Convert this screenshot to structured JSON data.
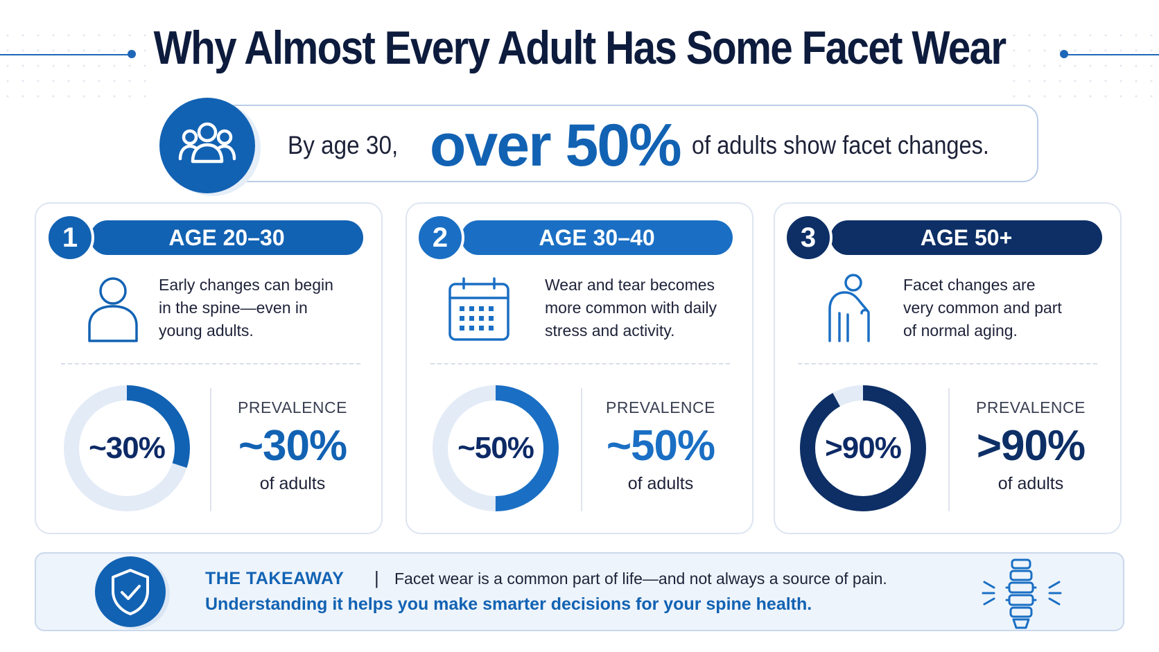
{
  "header": {
    "title": "Why Almost Every Adult Has Some Facet Wear"
  },
  "banner": {
    "icon": "group-people-icon",
    "prefix": "By age 30,",
    "highlight": "over 50%",
    "suffix": "of adults show facet changes."
  },
  "cards": [
    {
      "number": "1",
      "age_label": "AGE 20–30",
      "icon": "person-icon",
      "description": [
        "Early changes can begin",
        "in the spine—even in",
        "young adults."
      ],
      "ring_label": "~30%",
      "prevalence_caption": "PREVALENCE",
      "prevalence_value": "~30%",
      "prevalence_unit": "of adults",
      "fraction": 0.3,
      "accent": "#1262b3"
    },
    {
      "number": "2",
      "age_label": "AGE 30–40",
      "icon": "calendar-icon",
      "description": [
        "Wear and tear becomes",
        "more common with daily",
        "stress and activity."
      ],
      "ring_label": "~50%",
      "prevalence_caption": "PREVALENCE",
      "prevalence_value": "~50%",
      "prevalence_unit": "of adults",
      "fraction": 0.5,
      "accent": "#1a6fc4"
    },
    {
      "number": "3",
      "age_label": "AGE 50+",
      "icon": "elderly-person-cane-icon",
      "description": [
        "Facet changes are",
        "very common and part",
        "of normal aging."
      ],
      "ring_label": ">90%",
      "prevalence_caption": "PREVALENCE",
      "prevalence_value": ">90%",
      "prevalence_unit": "of adults",
      "fraction": 0.92,
      "accent": "#0d2f66"
    }
  ],
  "takeaway": {
    "icon": "shield-check-icon",
    "heading": "THE TAKEAWAY",
    "separator": "|",
    "line1": "Facet wear is a common part of life—and not always a source of pain.",
    "line2": "Understanding it helps you make smarter decisions for your spine health.",
    "side_icon": "spine-icon"
  },
  "colors": {
    "primary": "#1262b3",
    "navy": "#0d1b3d",
    "dark_accent": "#0d2f66",
    "ring_track": "#e3ebf7",
    "takeaway_bg": "#eef4fb"
  }
}
